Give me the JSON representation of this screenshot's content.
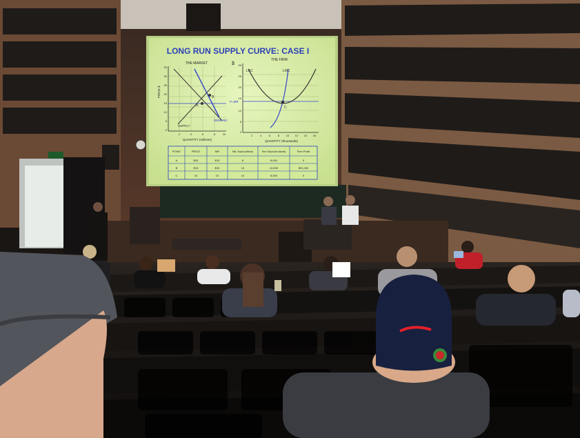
{
  "slide": {
    "title": "LONG RUN SUPPLY CURVE:  CASE I",
    "market_label": "THE MARKET",
    "firm_label": "THE FIRM",
    "firm_price_symbol": "$",
    "price_axis_label": "PRICE $",
    "market_x_ticks": [
      "2",
      "4",
      "6",
      "8",
      "10"
    ],
    "firm_x_ticks": [
      "2",
      "4",
      "6",
      "8",
      "10",
      "12",
      "14",
      "16"
    ],
    "market_y_ticks": [
      "35",
      "30",
      "25",
      "20",
      "15",
      "10",
      "5",
      "0"
    ],
    "firm_y_ticks": [
      "30",
      "25",
      "20",
      "15",
      "10",
      "5",
      "0"
    ],
    "quantity_market": "QUANTITY (millions)",
    "quantity_firm": "QUANTITY (thousands)",
    "point_a": "A",
    "point_b": "B",
    "point_c": "C",
    "supply_label": "SUPPLY",
    "demand_label": "DEMAND",
    "lac_label": "LAC",
    "lmc_label": "LMC",
    "mr_label": "P=MR",
    "table": {
      "headers": [
        "POINT",
        "PRICE",
        "MR",
        "Mkt. Output (millions)",
        "Firm Output (thousands)",
        "Firm Profit"
      ],
      "rows": [
        [
          "A",
          "$10",
          "$10",
          "8",
          "8,000",
          "0"
        ],
        [
          "B",
          "$15",
          "$15",
          "10",
          "10,000",
          "$51,000"
        ],
        [
          "C",
          "10",
          "10",
          "12",
          "8,000",
          "0"
        ]
      ]
    }
  },
  "colors": {
    "slide_bg": "#d9f0a8",
    "curve_blue": "#3344cc",
    "title_blue": "#2b3fb8"
  }
}
